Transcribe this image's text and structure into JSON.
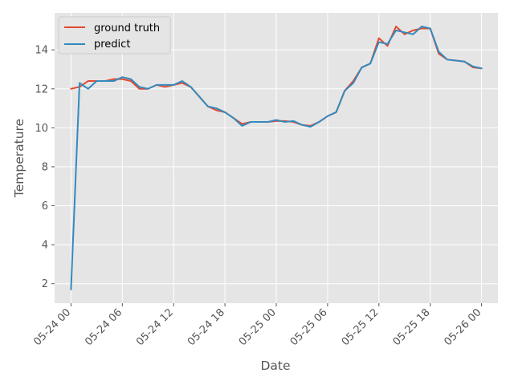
{
  "colors": {
    "background": "#E5E5E5",
    "grid": "#FFFFFF",
    "ground_truth": "#E24A33",
    "predict": "#348ABD"
  },
  "chart_data": {
    "type": "line",
    "title": "",
    "xlabel": "Date",
    "ylabel": "Temperature",
    "grid": true,
    "legend_position": "top-left",
    "ylim": [
      1.0,
      15.9
    ],
    "xlim": [
      "2024-05-23 22:05",
      "2024-05-26 01:55"
    ],
    "x_tick_labels": [
      "05-24 00",
      "05-24 06",
      "05-24 12",
      "05-24 18",
      "05-25 00",
      "05-25 06",
      "05-25 12",
      "05-25 18",
      "05-26 00"
    ],
    "y_ticks": [
      2,
      4,
      6,
      8,
      10,
      12,
      14
    ],
    "x": [
      "2024-05-24 00:00",
      "2024-05-24 01:00",
      "2024-05-24 02:00",
      "2024-05-24 03:00",
      "2024-05-24 04:00",
      "2024-05-24 05:00",
      "2024-05-24 06:00",
      "2024-05-24 07:00",
      "2024-05-24 08:00",
      "2024-05-24 09:00",
      "2024-05-24 10:00",
      "2024-05-24 11:00",
      "2024-05-24 12:00",
      "2024-05-24 13:00",
      "2024-05-24 14:00",
      "2024-05-24 15:00",
      "2024-05-24 16:00",
      "2024-05-24 17:00",
      "2024-05-24 18:00",
      "2024-05-24 19:00",
      "2024-05-24 20:00",
      "2024-05-24 21:00",
      "2024-05-24 22:00",
      "2024-05-24 23:00",
      "2024-05-25 00:00",
      "2024-05-25 01:00",
      "2024-05-25 02:00",
      "2024-05-25 03:00",
      "2024-05-25 04:00",
      "2024-05-25 05:00",
      "2024-05-25 06:00",
      "2024-05-25 07:00",
      "2024-05-25 08:00",
      "2024-05-25 09:00",
      "2024-05-25 10:00",
      "2024-05-25 11:00",
      "2024-05-25 12:00",
      "2024-05-25 13:00",
      "2024-05-25 14:00",
      "2024-05-25 15:00",
      "2024-05-25 16:00",
      "2024-05-25 17:00",
      "2024-05-25 18:00",
      "2024-05-25 19:00",
      "2024-05-25 20:00",
      "2024-05-25 21:00",
      "2024-05-25 22:00",
      "2024-05-25 23:00",
      "2024-05-26 00:00"
    ],
    "series": [
      {
        "name": "ground truth",
        "color": "#E24A33",
        "values": [
          12.0,
          12.1,
          12.4,
          12.4,
          12.4,
          12.5,
          12.5,
          12.4,
          12.0,
          12.0,
          12.2,
          12.1,
          12.2,
          12.3,
          12.1,
          11.6,
          11.1,
          10.9,
          10.8,
          10.5,
          10.2,
          10.3,
          10.3,
          10.3,
          10.35,
          10.35,
          10.3,
          10.15,
          10.1,
          10.3,
          10.6,
          10.8,
          11.9,
          12.4,
          13.1,
          13.3,
          14.6,
          14.2,
          15.2,
          14.8,
          15.0,
          15.1,
          15.1,
          13.8,
          13.5,
          13.45,
          13.4,
          13.1,
          13.05
        ]
      },
      {
        "name": "predict",
        "color": "#348ABD",
        "values": [
          1.7,
          12.3,
          12.0,
          12.4,
          12.4,
          12.4,
          12.6,
          12.5,
          12.1,
          12.0,
          12.2,
          12.2,
          12.2,
          12.4,
          12.1,
          11.6,
          11.1,
          11.0,
          10.8,
          10.5,
          10.1,
          10.3,
          10.3,
          10.3,
          10.4,
          10.3,
          10.35,
          10.15,
          10.05,
          10.3,
          10.6,
          10.8,
          11.9,
          12.3,
          13.1,
          13.3,
          14.4,
          14.3,
          15.0,
          14.9,
          14.8,
          15.2,
          15.1,
          13.9,
          13.5,
          13.45,
          13.4,
          13.15,
          13.05
        ]
      }
    ]
  }
}
